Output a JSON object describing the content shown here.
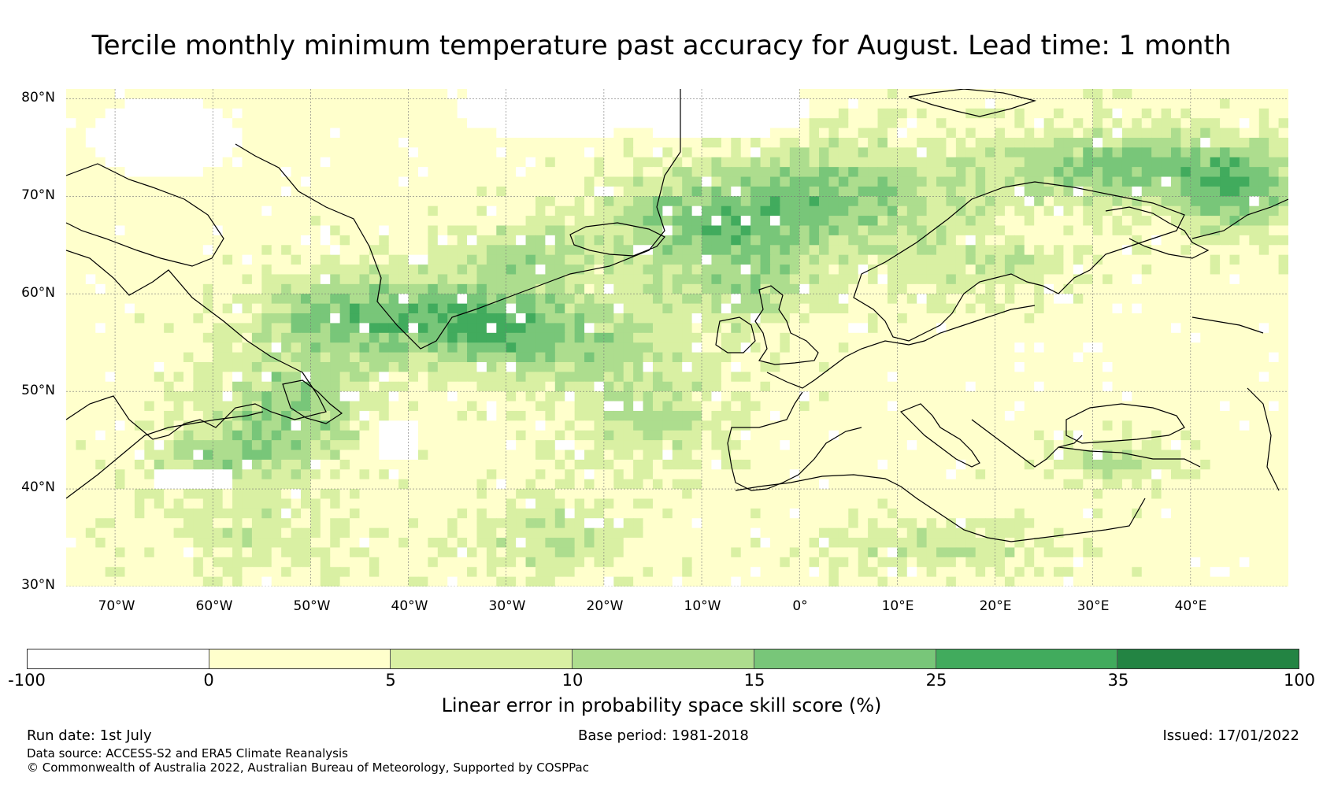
{
  "title": "Tercile monthly minimum temperature past accuracy for August. Lead time: 1 month",
  "map": {
    "lat_labels": [
      "80°N",
      "70°N",
      "60°N",
      "50°N",
      "40°N",
      "30°N"
    ],
    "lat_values": [
      80,
      70,
      60,
      50,
      40,
      30
    ],
    "lon_labels": [
      "70°W",
      "60°W",
      "50°W",
      "40°W",
      "30°W",
      "20°W",
      "10°W",
      "0°",
      "10°E",
      "20°E",
      "30°E",
      "40°E"
    ],
    "lon_values": [
      -70,
      -60,
      -50,
      -40,
      -30,
      -20,
      -10,
      0,
      10,
      20,
      30,
      40
    ],
    "extent": {
      "lon_min": -75,
      "lon_max": 50,
      "lat_min": 30,
      "lat_max": 81
    },
    "gridlines": true
  },
  "colorbar": {
    "label": "Linear error in probability space skill score (%)",
    "ticks": [
      "-100",
      "0",
      "5",
      "10",
      "15",
      "25",
      "35",
      "100"
    ],
    "colors": [
      "#ffffff",
      "#ffffcc",
      "#d9f0a3",
      "#addd8e",
      "#78c679",
      "#41ab5d",
      "#238443"
    ]
  },
  "footer": {
    "run_date": "Run date: 1st July",
    "base_period": "Base period: 1981-2018",
    "issued": "Issued: 17/01/2022",
    "data_source": "Data source: ACCESS-S2 and ERA5 Climate Reanalysis",
    "copyright": "© Commonwealth of Australia 2022, Australian Bureau of Meteorology, Supported by COSPPac"
  }
}
